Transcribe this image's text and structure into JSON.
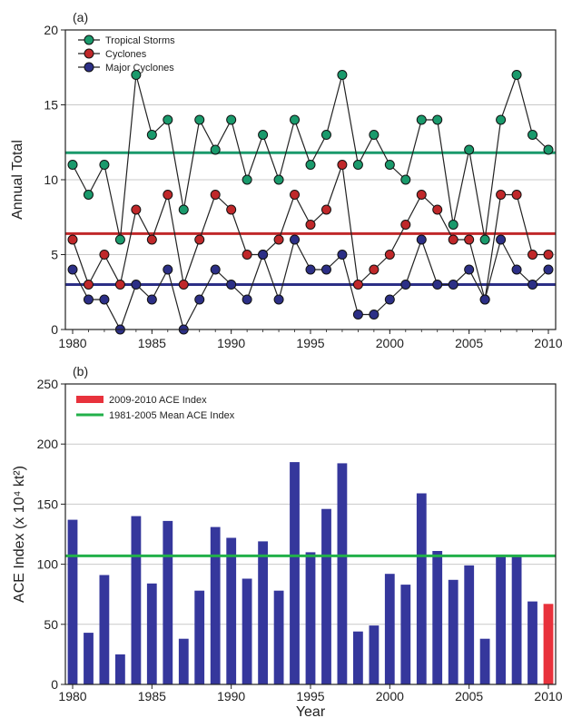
{
  "chart_data": [
    {
      "panel_label": "(a)",
      "type": "line",
      "ylabel": "Annual Total",
      "xlabel": "",
      "xlim": [
        1980,
        2010
      ],
      "ylim": [
        0,
        20
      ],
      "x_ticks": [
        1980,
        1985,
        1990,
        1995,
        2000,
        2005,
        2010
      ],
      "y_ticks": [
        0,
        5,
        10,
        15,
        20
      ],
      "grid": "horizontal",
      "legend_position": "top-left",
      "x": [
        1980,
        1981,
        1982,
        1983,
        1984,
        1985,
        1986,
        1987,
        1988,
        1989,
        1990,
        1991,
        1992,
        1993,
        1994,
        1995,
        1996,
        1997,
        1998,
        1999,
        2000,
        2001,
        2002,
        2003,
        2004,
        2005,
        2006,
        2007,
        2008,
        2009,
        2010
      ],
      "series": [
        {
          "name": "Tropical Storms",
          "color": "#1a9a6c",
          "values": [
            11,
            9,
            11,
            6,
            17,
            13,
            14,
            8,
            14,
            12,
            14,
            10,
            13,
            10,
            14,
            11,
            13,
            17,
            11,
            13,
            11,
            10,
            14,
            14,
            7,
            12,
            6,
            14,
            17,
            13,
            12
          ],
          "mean": 11.8
        },
        {
          "name": "Cyclones",
          "color": "#c0282a",
          "values": [
            6,
            3,
            5,
            3,
            8,
            6,
            9,
            3,
            6,
            9,
            8,
            5,
            5,
            6,
            9,
            7,
            8,
            11,
            3,
            4,
            5,
            7,
            9,
            8,
            6,
            6,
            2,
            9,
            9,
            5,
            5
          ],
          "mean": 6.4
        },
        {
          "name": "Major Cyclones",
          "color": "#2c2f86",
          "values": [
            4,
            2,
            2,
            0,
            3,
            2,
            4,
            0,
            2,
            4,
            3,
            2,
            5,
            2,
            6,
            4,
            4,
            5,
            1,
            1,
            2,
            3,
            6,
            3,
            3,
            4,
            2,
            6,
            4,
            3,
            4
          ],
          "mean": 3.0
        }
      ]
    },
    {
      "panel_label": "(b)",
      "type": "bar",
      "ylabel": "ACE Index (x 10⁴ kt²)",
      "xlabel": "Year",
      "xlim": [
        1980,
        2010
      ],
      "ylim": [
        0,
        250
      ],
      "x_ticks": [
        1980,
        1985,
        1990,
        1995,
        2000,
        2005,
        2010
      ],
      "y_ticks": [
        0,
        50,
        100,
        150,
        200,
        250
      ],
      "grid": "horizontal",
      "legend_position": "top-left",
      "legend": [
        {
          "label": "2009-2010 ACE Index",
          "color": "#e8323c"
        },
        {
          "label": "1981-2005 Mean ACE Index",
          "color": "#22b04a"
        }
      ],
      "bar_color": "#35379c",
      "highlight_color": "#e8323c",
      "mean": 107,
      "x": [
        1980,
        1981,
        1982,
        1983,
        1984,
        1985,
        1986,
        1987,
        1988,
        1989,
        1990,
        1991,
        1992,
        1993,
        1994,
        1995,
        1996,
        1997,
        1998,
        1999,
        2000,
        2001,
        2002,
        2003,
        2004,
        2005,
        2006,
        2007,
        2008,
        2009,
        2010
      ],
      "values": [
        137,
        43,
        91,
        25,
        140,
        84,
        136,
        38,
        78,
        131,
        122,
        88,
        119,
        78,
        185,
        110,
        146,
        184,
        44,
        49,
        92,
        83,
        159,
        111,
        87,
        99,
        38,
        107,
        107,
        69,
        67
      ],
      "highlight_years": [
        2010
      ]
    }
  ]
}
